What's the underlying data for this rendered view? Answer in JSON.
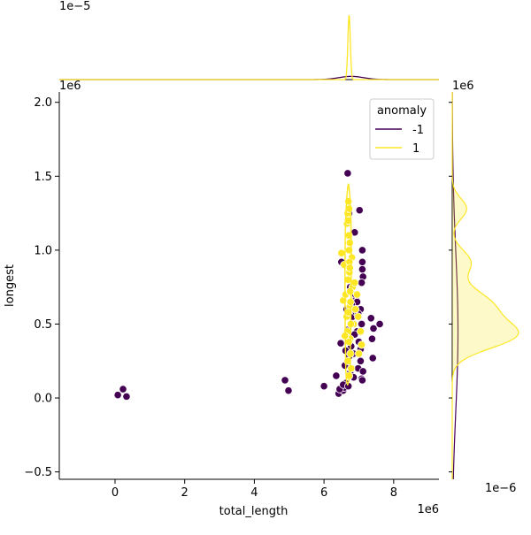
{
  "chart_data": {
    "type": "scatter",
    "xlabel": "total_length",
    "ylabel": "longest",
    "x_offset_label": "1e6",
    "y_offset_label": "1e6",
    "xlim": [
      -1.6,
      9.3
    ],
    "ylim": [
      -0.55,
      2.07
    ],
    "x_ticks": [
      0,
      2,
      4,
      6,
      8
    ],
    "x_tick_labels": [
      "0",
      "2",
      "4",
      "6",
      "8"
    ],
    "y_ticks": [
      -0.5,
      0.0,
      0.5,
      1.0,
      1.5,
      2.0
    ],
    "y_tick_labels": [
      "−0.5",
      "0.0",
      "0.5",
      "1.0",
      "1.5",
      "2.0"
    ],
    "legend": {
      "title": "anomaly",
      "position": "top-right",
      "entries": [
        {
          "label": "-1",
          "color": "#440154"
        },
        {
          "label": "1",
          "color": "#fde725"
        }
      ]
    },
    "series": [
      {
        "name": "-1",
        "color": "#440154",
        "x": [
          0.08,
          0.23,
          0.33,
          4.88,
          4.98,
          6.0,
          6.35,
          6.42,
          6.48,
          6.5,
          6.55,
          6.58,
          6.62,
          6.65,
          6.68,
          6.7,
          6.72,
          6.75,
          6.78,
          6.82,
          6.85,
          6.88,
          6.92,
          6.95,
          6.98,
          7.0,
          7.02,
          7.05,
          7.08,
          7.1,
          7.12,
          7.1,
          7.05,
          7.08,
          7.12,
          7.35,
          7.38,
          7.4,
          7.42,
          7.6,
          7.1,
          6.6,
          6.75,
          6.88,
          6.95,
          7.05,
          6.45,
          6.55,
          6.7,
          6.85,
          6.68,
          6.92,
          7.08,
          6.72,
          6.8,
          6.62,
          6.9,
          6.98,
          7.1
        ],
        "y": [
          0.02,
          0.06,
          0.01,
          0.12,
          0.05,
          0.08,
          0.15,
          0.03,
          0.37,
          0.92,
          0.05,
          0.07,
          0.1,
          0.6,
          1.52,
          0.4,
          1.25,
          0.75,
          0.35,
          0.55,
          0.3,
          1.12,
          0.68,
          0.45,
          0.2,
          0.38,
          1.27,
          0.6,
          0.5,
          1.0,
          0.82,
          0.92,
          0.25,
          0.13,
          0.18,
          0.54,
          0.4,
          0.27,
          0.47,
          0.5,
          0.87,
          0.22,
          0.17,
          0.43,
          0.65,
          0.33,
          0.06,
          0.09,
          0.08,
          0.14,
          0.46,
          0.58,
          0.78,
          0.28,
          0.63,
          0.32,
          0.7,
          0.57,
          0.12
        ]
      },
      {
        "name": "1",
        "color": "#fde725",
        "x": [
          6.5,
          6.55,
          6.58,
          6.62,
          6.65,
          6.67,
          6.68,
          6.7,
          6.71,
          6.72,
          6.73,
          6.74,
          6.75,
          6.76,
          6.78,
          6.8,
          6.82,
          6.85,
          6.9,
          6.95,
          7.0,
          7.05,
          7.08,
          6.66,
          6.69,
          6.72,
          6.74,
          6.77,
          6.68,
          6.7,
          6.73,
          6.75,
          6.71,
          6.69,
          6.72,
          6.74,
          6.76,
          6.6,
          6.88,
          6.98
        ],
        "y": [
          0.98,
          0.66,
          0.9,
          0.7,
          0.55,
          0.45,
          1.25,
          1.33,
          1.1,
          1.0,
          0.85,
          0.62,
          0.4,
          0.3,
          0.2,
          0.95,
          0.75,
          0.5,
          0.6,
          0.7,
          0.3,
          0.45,
          0.36,
          1.18,
          0.8,
          0.15,
          1.05,
          0.5,
          0.25,
          0.58,
          0.92,
          0.72,
          0.38,
          1.2,
          1.28,
          0.88,
          0.65,
          0.42,
          0.78,
          0.55
        ]
      }
    ],
    "marginal_top": {
      "type": "kde",
      "scale_label": "1e−5",
      "series": [
        {
          "name": "-1",
          "color": "#440154",
          "center": 6.78,
          "width": 0.35,
          "peak": 0.05
        },
        {
          "name": "1",
          "color": "#fde725",
          "center": 6.72,
          "width": 0.035,
          "peak": 1.0
        }
      ]
    },
    "marginal_right": {
      "type": "kde",
      "scale_label": "1e−6",
      "top_scale_label": "1e6",
      "series": [
        {
          "name": "-1",
          "color": "#440154",
          "center": 0.45,
          "width": 0.55,
          "peak": 0.08
        },
        {
          "name": "1",
          "color": "#fde725",
          "components": [
            {
              "center": 0.42,
              "width": 0.09,
              "peak": 0.8
            },
            {
              "center": 0.62,
              "width": 0.11,
              "peak": 0.55
            },
            {
              "center": 0.92,
              "width": 0.08,
              "peak": 0.25
            },
            {
              "center": 1.28,
              "width": 0.07,
              "peak": 0.2
            }
          ]
        }
      ]
    }
  }
}
